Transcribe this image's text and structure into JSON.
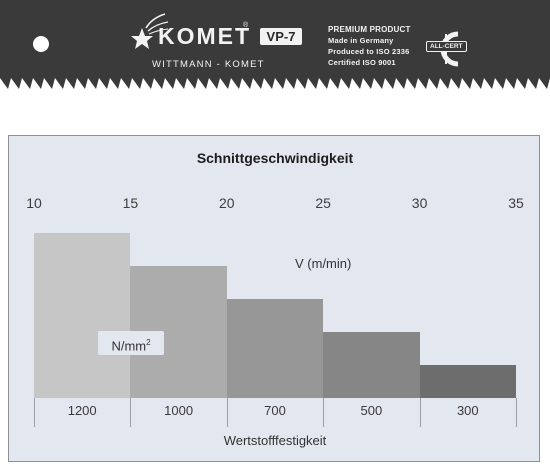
{
  "blade": {
    "brand": "KOMET",
    "registered": "®",
    "model": "VP-7",
    "subtitle": "WITTMANN - KOMET",
    "info": [
      "PREMIUM PRODUCT",
      "Made in Germany",
      "Produced to ISO 2336",
      "Certified ISO 9001"
    ],
    "cert_badge": "ALL-CERT",
    "logo_icon": "comet-star-icon",
    "colors": {
      "blade": "#3a3a3a",
      "text": "#f2f2f2"
    }
  },
  "chart_data": {
    "type": "bar",
    "title": "Schnittgeschwindigkeit",
    "top_axis": {
      "label": "V (m/min)",
      "ticks": [
        10,
        15,
        20,
        25,
        30,
        35
      ],
      "range": [
        10,
        35
      ]
    },
    "categories": [
      "1200",
      "1000",
      "700",
      "500",
      "300"
    ],
    "category_unit": "N/mm",
    "category_unit_sup": "2",
    "xlabel": "Wertstofffestigkeit",
    "intervals": [
      [
        10,
        15
      ],
      [
        15,
        20
      ],
      [
        20,
        25
      ],
      [
        25,
        30
      ],
      [
        30,
        35
      ]
    ],
    "values": [
      5,
      4,
      3,
      2,
      1
    ],
    "colors": [
      "#c6c6c6",
      "#acacac",
      "#979797",
      "#868686",
      "#6d6d6d"
    ],
    "background": "#e3e7f0"
  }
}
